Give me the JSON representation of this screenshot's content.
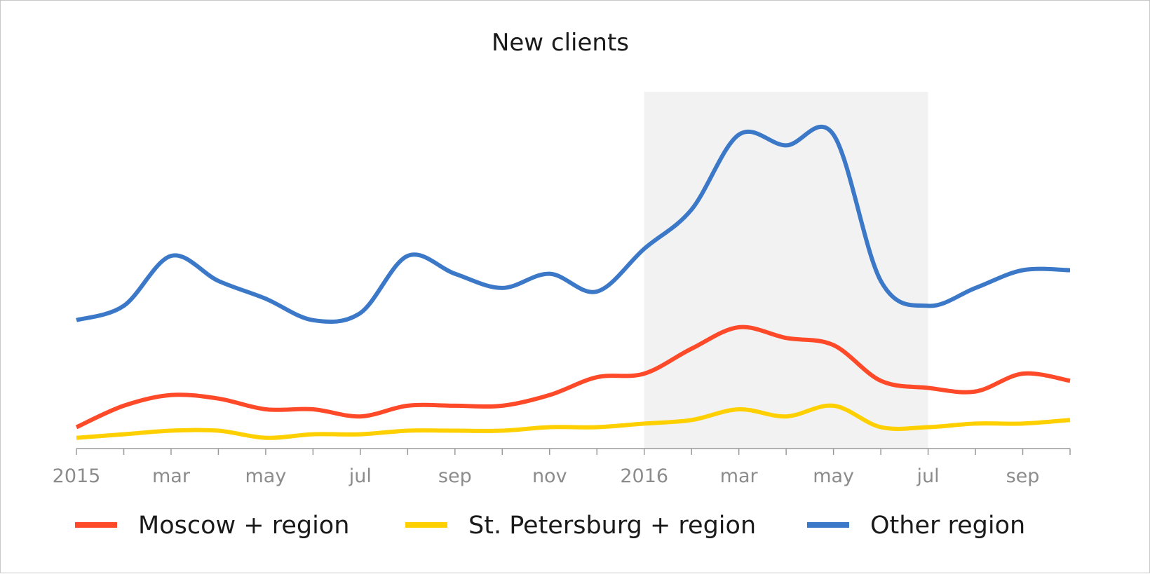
{
  "chart_data": {
    "type": "line",
    "title": "New clients",
    "xlabel": "",
    "ylabel": "",
    "ylim": [
      0,
      100
    ],
    "grid": false,
    "legend_position": "bottom",
    "highlight_range": {
      "from": 12,
      "to": 18,
      "color": "#f2f2f2"
    },
    "x": [
      0,
      1,
      2,
      3,
      4,
      5,
      6,
      7,
      8,
      9,
      10,
      11,
      12,
      13,
      14,
      15,
      16,
      17,
      18,
      19,
      20,
      21
    ],
    "x_tick_labels": [
      "2015",
      "",
      "mar",
      "",
      "may",
      "",
      "jul",
      "",
      "sep",
      "",
      "nov",
      "",
      "2016",
      "",
      "mar",
      "",
      "may",
      "",
      "jul",
      "",
      "sep",
      ""
    ],
    "series": [
      {
        "name": "Moscow + region",
        "color": "#ff4a2a",
        "values": [
          6,
          12,
          15,
          14,
          11,
          11,
          9,
          12,
          12,
          12,
          15,
          20,
          21,
          28,
          34,
          31,
          29,
          19,
          17,
          16,
          21,
          19
        ]
      },
      {
        "name": "St. Petersburg + region",
        "color": "#ffd000",
        "values": [
          3,
          4,
          5,
          5,
          3,
          4,
          4,
          5,
          5,
          5,
          6,
          6,
          7,
          8,
          11,
          9,
          12,
          6,
          6,
          7,
          7,
          8
        ]
      },
      {
        "name": "Other region",
        "color": "#3c78c8",
        "values": [
          36,
          40,
          54,
          47,
          42,
          36,
          38,
          54,
          49,
          45,
          49,
          44,
          56,
          67,
          88,
          85,
          88,
          47,
          40,
          45,
          50,
          50
        ]
      }
    ]
  }
}
